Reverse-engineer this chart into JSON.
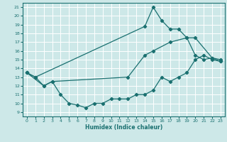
{
  "xlabel": "Humidex (Indice chaleur)",
  "bg_color": "#cde8e8",
  "grid_color": "#ffffff",
  "line_color": "#1a7070",
  "xlim": [
    -0.5,
    23.5
  ],
  "ylim": [
    8.5,
    21.5
  ],
  "xticks": [
    0,
    1,
    2,
    3,
    4,
    5,
    6,
    7,
    8,
    9,
    10,
    11,
    12,
    13,
    14,
    15,
    16,
    17,
    18,
    19,
    20,
    21,
    22,
    23
  ],
  "yticks": [
    9,
    10,
    11,
    12,
    13,
    14,
    15,
    16,
    17,
    18,
    19,
    20,
    21
  ],
  "line1_x": [
    0,
    1,
    2,
    3,
    4,
    5,
    6,
    7,
    8,
    9,
    10,
    11,
    12,
    13,
    14,
    15,
    16,
    17,
    18,
    19,
    20,
    21,
    22,
    23
  ],
  "line1_y": [
    13.5,
    13.0,
    12.0,
    12.5,
    11.0,
    10.0,
    9.8,
    9.5,
    10.0,
    10.0,
    10.5,
    10.5,
    10.5,
    11.0,
    11.0,
    11.5,
    13.0,
    12.5,
    13.0,
    13.5,
    15.0,
    15.5,
    15.0,
    14.8
  ],
  "line2_x": [
    0,
    2,
    3,
    12,
    14,
    15,
    17,
    19,
    20,
    22,
    23
  ],
  "line2_y": [
    13.5,
    12.0,
    12.5,
    13.0,
    15.5,
    16.0,
    17.0,
    17.5,
    17.5,
    15.2,
    15.0
  ],
  "line3_x": [
    0,
    1,
    14,
    15,
    16,
    17,
    18,
    19,
    20,
    21,
    22,
    23
  ],
  "line3_y": [
    13.5,
    13.0,
    18.8,
    21.0,
    19.5,
    18.5,
    18.5,
    17.5,
    15.5,
    15.0,
    15.2,
    14.8
  ]
}
